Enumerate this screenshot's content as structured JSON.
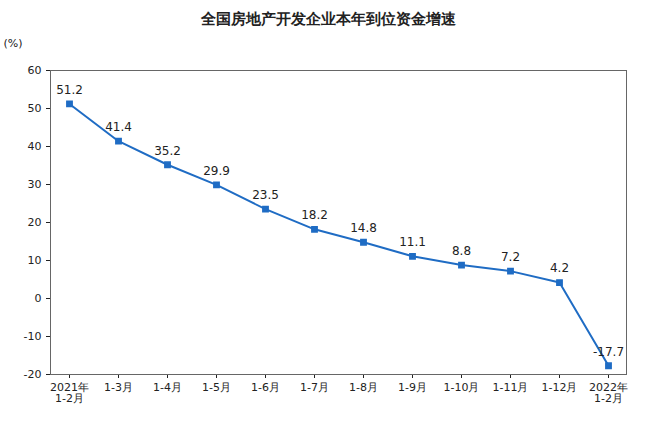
{
  "chart_data": {
    "type": "line",
    "title": "全国房地产开发企业本年到位资金增速",
    "y_label": "(%)",
    "categories": [
      "2021年\n1-2月",
      "1-3月",
      "1-4月",
      "1-5月",
      "1-6月",
      "1-7月",
      "1-8月",
      "1-9月",
      "1-10月",
      "1-11月",
      "1-12月",
      "2022年\n1-2月"
    ],
    "values": [
      51.2,
      41.4,
      35.2,
      29.9,
      23.5,
      18.2,
      14.8,
      11.1,
      8.8,
      7.2,
      4.2,
      -17.7
    ],
    "color": "#1f6cc4",
    "marker": "square",
    "ylim": [
      -20,
      60
    ],
    "yticks": [
      -20,
      -10,
      0,
      10,
      20,
      30,
      40,
      50,
      60
    ],
    "grid": false,
    "data_labels": true
  }
}
